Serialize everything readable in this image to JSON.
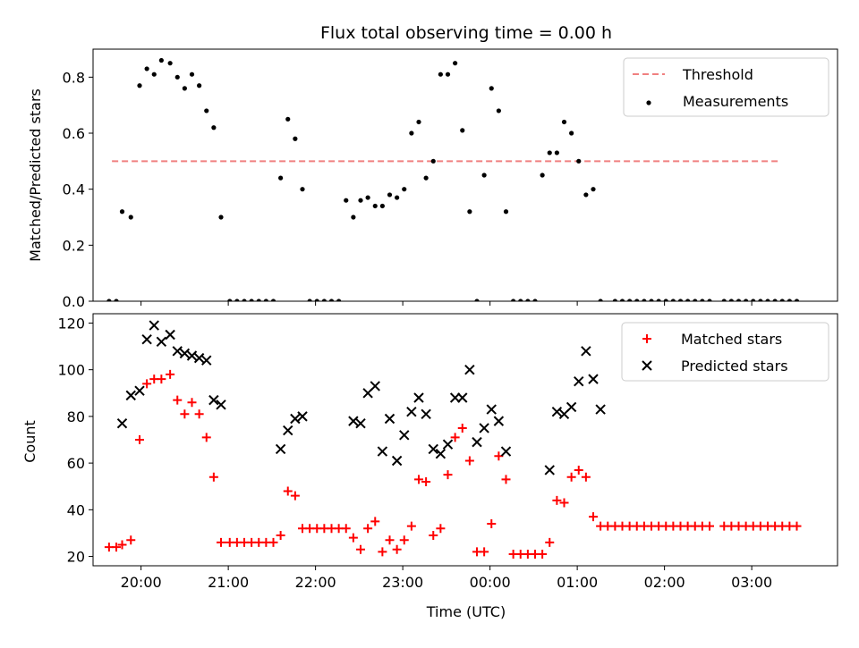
{
  "chart_data": [
    {
      "type": "scatter",
      "title": "Flux total observing time = 0.00 h",
      "xlabel": "",
      "ylabel": "Matched/Predicted stars",
      "ylim": [
        0,
        0.9
      ],
      "xlim": [
        "19:27",
        "03:59"
      ],
      "yticks": [
        "0.0",
        "0.2",
        "0.4",
        "0.6",
        "0.8"
      ],
      "legend_position": "top-right",
      "series": [
        {
          "name": "Threshold",
          "kind": "dashed-line",
          "color": "#f08080",
          "x": [
            "19:40",
            "03:20"
          ],
          "y": [
            0.5,
            0.5
          ]
        },
        {
          "name": "Measurements",
          "kind": "dot",
          "color": "#000000",
          "points": [
            [
              "19:38",
              0
            ],
            [
              "19:43",
              0
            ],
            [
              "19:47",
              0.32
            ],
            [
              "19:53",
              0.3
            ],
            [
              "19:59",
              0.77
            ],
            [
              "20:04",
              0.83
            ],
            [
              "20:09",
              0.81
            ],
            [
              "20:14",
              0.86
            ],
            [
              "20:20",
              0.85
            ],
            [
              "20:25",
              0.8
            ],
            [
              "20:30",
              0.76
            ],
            [
              "20:35",
              0.81
            ],
            [
              "20:40",
              0.77
            ],
            [
              "20:45",
              0.68
            ],
            [
              "20:50",
              0.62
            ],
            [
              "20:55",
              0.3
            ],
            [
              "21:01",
              0
            ],
            [
              "21:06",
              0
            ],
            [
              "21:11",
              0
            ],
            [
              "21:16",
              0
            ],
            [
              "21:21",
              0
            ],
            [
              "21:26",
              0
            ],
            [
              "21:31",
              0
            ],
            [
              "21:36",
              0.44
            ],
            [
              "21:41",
              0.65
            ],
            [
              "21:46",
              0.58
            ],
            [
              "21:51",
              0.4
            ],
            [
              "21:56",
              0
            ],
            [
              "22:01",
              0
            ],
            [
              "22:06",
              0
            ],
            [
              "22:11",
              0
            ],
            [
              "22:16",
              0
            ],
            [
              "22:21",
              0.36
            ],
            [
              "22:26",
              0.3
            ],
            [
              "22:31",
              0.36
            ],
            [
              "22:36",
              0.37
            ],
            [
              "22:41",
              0.34
            ],
            [
              "22:46",
              0.34
            ],
            [
              "22:51",
              0.38
            ],
            [
              "22:56",
              0.37
            ],
            [
              "23:01",
              0.4
            ],
            [
              "23:06",
              0.6
            ],
            [
              "23:11",
              0.64
            ],
            [
              "23:16",
              0.44
            ],
            [
              "23:21",
              0.5
            ],
            [
              "23:26",
              0.81
            ],
            [
              "23:31",
              0.81
            ],
            [
              "23:36",
              0.85
            ],
            [
              "23:41",
              0.61
            ],
            [
              "23:46",
              0.32
            ],
            [
              "23:51",
              0
            ],
            [
              "23:56",
              0.45
            ],
            [
              "00:01",
              0.76
            ],
            [
              "00:06",
              0.68
            ],
            [
              "00:11",
              0.32
            ],
            [
              "00:16",
              0
            ],
            [
              "00:21",
              0
            ],
            [
              "00:26",
              0
            ],
            [
              "00:31",
              0
            ],
            [
              "00:36",
              0.45
            ],
            [
              "00:41",
              0.53
            ],
            [
              "00:46",
              0.53
            ],
            [
              "00:51",
              0.64
            ],
            [
              "00:56",
              0.6
            ],
            [
              "01:01",
              0.5
            ],
            [
              "01:06",
              0.38
            ],
            [
              "01:11",
              0.4
            ],
            [
              "01:16",
              0
            ],
            [
              "01:26",
              0
            ],
            [
              "01:31",
              0
            ],
            [
              "01:36",
              0
            ],
            [
              "01:41",
              0
            ],
            [
              "01:46",
              0
            ],
            [
              "01:51",
              0
            ],
            [
              "01:56",
              0
            ],
            [
              "02:01",
              0
            ],
            [
              "02:06",
              0
            ],
            [
              "02:11",
              0
            ],
            [
              "02:16",
              0
            ],
            [
              "02:21",
              0
            ],
            [
              "02:26",
              0
            ],
            [
              "02:31",
              0
            ],
            [
              "02:41",
              0
            ],
            [
              "02:46",
              0
            ],
            [
              "02:51",
              0
            ],
            [
              "02:56",
              0
            ],
            [
              "03:01",
              0
            ],
            [
              "03:06",
              0
            ],
            [
              "03:11",
              0
            ],
            [
              "03:16",
              0
            ],
            [
              "03:21",
              0
            ],
            [
              "03:26",
              0
            ],
            [
              "03:31",
              0
            ]
          ]
        }
      ]
    },
    {
      "type": "scatter",
      "title": "",
      "xlabel": "Time (UTC)",
      "ylabel": "Count",
      "ylim": [
        16,
        124
      ],
      "xlim": [
        "19:27",
        "03:59"
      ],
      "xticks": [
        "20:00",
        "21:00",
        "22:00",
        "23:00",
        "00:00",
        "01:00",
        "02:00",
        "03:00"
      ],
      "yticks": [
        "20",
        "40",
        "60",
        "80",
        "100",
        "120"
      ],
      "legend_position": "top-right",
      "series": [
        {
          "name": "Matched stars",
          "kind": "plus",
          "color": "#ff0000",
          "points": [
            [
              "19:38",
              24
            ],
            [
              "19:43",
              24
            ],
            [
              "19:47",
              25
            ],
            [
              "19:53",
              27
            ],
            [
              "19:59",
              70
            ],
            [
              "20:04",
              94
            ],
            [
              "20:09",
              96
            ],
            [
              "20:14",
              96
            ],
            [
              "20:20",
              98
            ],
            [
              "20:25",
              87
            ],
            [
              "20:30",
              81
            ],
            [
              "20:35",
              86
            ],
            [
              "20:40",
              81
            ],
            [
              "20:45",
              71
            ],
            [
              "20:50",
              54
            ],
            [
              "20:55",
              26
            ],
            [
              "21:01",
              26
            ],
            [
              "21:06",
              26
            ],
            [
              "21:11",
              26
            ],
            [
              "21:16",
              26
            ],
            [
              "21:21",
              26
            ],
            [
              "21:26",
              26
            ],
            [
              "21:31",
              26
            ],
            [
              "21:36",
              29
            ],
            [
              "21:41",
              48
            ],
            [
              "21:46",
              46
            ],
            [
              "21:51",
              32
            ],
            [
              "21:56",
              32
            ],
            [
              "22:01",
              32
            ],
            [
              "22:06",
              32
            ],
            [
              "22:11",
              32
            ],
            [
              "22:16",
              32
            ],
            [
              "22:21",
              32
            ],
            [
              "22:26",
              28
            ],
            [
              "22:31",
              23
            ],
            [
              "22:36",
              32
            ],
            [
              "22:41",
              35
            ],
            [
              "22:46",
              22
            ],
            [
              "22:51",
              27
            ],
            [
              "22:56",
              23
            ],
            [
              "23:01",
              27
            ],
            [
              "23:06",
              33
            ],
            [
              "23:11",
              53
            ],
            [
              "23:16",
              52
            ],
            [
              "23:21",
              29
            ],
            [
              "23:26",
              32
            ],
            [
              "23:31",
              55
            ],
            [
              "23:36",
              71
            ],
            [
              "23:41",
              75
            ],
            [
              "23:46",
              61
            ],
            [
              "23:51",
              22
            ],
            [
              "23:56",
              22
            ],
            [
              "00:01",
              34
            ],
            [
              "00:06",
              63
            ],
            [
              "00:11",
              53
            ],
            [
              "00:16",
              21
            ],
            [
              "00:21",
              21
            ],
            [
              "00:26",
              21
            ],
            [
              "00:31",
              21
            ],
            [
              "00:36",
              21
            ],
            [
              "00:41",
              26
            ],
            [
              "00:46",
              44
            ],
            [
              "00:51",
              43
            ],
            [
              "00:56",
              54
            ],
            [
              "01:01",
              57
            ],
            [
              "01:06",
              54
            ],
            [
              "01:11",
              37
            ],
            [
              "01:16",
              33
            ],
            [
              "01:21",
              33
            ],
            [
              "01:26",
              33
            ],
            [
              "01:31",
              33
            ],
            [
              "01:36",
              33
            ],
            [
              "01:41",
              33
            ],
            [
              "01:46",
              33
            ],
            [
              "01:51",
              33
            ],
            [
              "01:56",
              33
            ],
            [
              "02:01",
              33
            ],
            [
              "02:06",
              33
            ],
            [
              "02:11",
              33
            ],
            [
              "02:16",
              33
            ],
            [
              "02:21",
              33
            ],
            [
              "02:26",
              33
            ],
            [
              "02:31",
              33
            ],
            [
              "02:41",
              33
            ],
            [
              "02:46",
              33
            ],
            [
              "02:51",
              33
            ],
            [
              "02:56",
              33
            ],
            [
              "03:01",
              33
            ],
            [
              "03:06",
              33
            ],
            [
              "03:11",
              33
            ],
            [
              "03:16",
              33
            ],
            [
              "03:21",
              33
            ],
            [
              "03:26",
              33
            ],
            [
              "03:31",
              33
            ]
          ]
        },
        {
          "name": "Predicted stars",
          "kind": "cross",
          "color": "#000000",
          "points": [
            [
              "19:47",
              77
            ],
            [
              "19:53",
              89
            ],
            [
              "19:59",
              91
            ],
            [
              "20:04",
              113
            ],
            [
              "20:09",
              119
            ],
            [
              "20:14",
              112
            ],
            [
              "20:20",
              115
            ],
            [
              "20:25",
              108
            ],
            [
              "20:30",
              107
            ],
            [
              "20:35",
              106
            ],
            [
              "20:40",
              105
            ],
            [
              "20:45",
              104
            ],
            [
              "20:50",
              87
            ],
            [
              "20:55",
              85
            ],
            [
              "21:36",
              66
            ],
            [
              "21:41",
              74
            ],
            [
              "21:46",
              79
            ],
            [
              "21:51",
              80
            ],
            [
              "22:26",
              78
            ],
            [
              "22:31",
              77
            ],
            [
              "22:36",
              90
            ],
            [
              "22:41",
              93
            ],
            [
              "22:46",
              65
            ],
            [
              "22:51",
              79
            ],
            [
              "22:56",
              61
            ],
            [
              "23:01",
              72
            ],
            [
              "23:06",
              82
            ],
            [
              "23:11",
              88
            ],
            [
              "23:16",
              81
            ],
            [
              "23:21",
              66
            ],
            [
              "23:26",
              64
            ],
            [
              "23:31",
              68
            ],
            [
              "23:36",
              88
            ],
            [
              "23:41",
              88
            ],
            [
              "23:46",
              100
            ],
            [
              "23:51",
              69
            ],
            [
              "23:56",
              75
            ],
            [
              "00:01",
              83
            ],
            [
              "00:06",
              78
            ],
            [
              "00:11",
              65
            ],
            [
              "00:41",
              57
            ],
            [
              "00:46",
              82
            ],
            [
              "00:51",
              81
            ],
            [
              "00:56",
              84
            ],
            [
              "01:01",
              95
            ],
            [
              "01:06",
              108
            ],
            [
              "01:11",
              96
            ],
            [
              "01:16",
              83
            ]
          ]
        }
      ]
    }
  ]
}
